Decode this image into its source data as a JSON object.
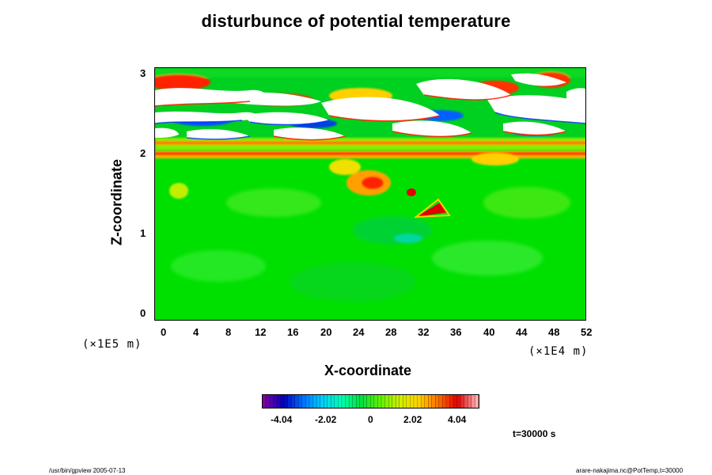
{
  "chart_data": {
    "type": "heatmap",
    "title": "disturbunce of potential temperature",
    "xlabel": "X-coordinate",
    "ylabel": "Z-coordinate",
    "x_unit": "(×1E4 m)",
    "y_unit": "(×1E5 m)",
    "xlim": [
      -0.6,
      52
    ],
    "ylim": [
      -0.1,
      3.1
    ],
    "x_ticks": [
      "0",
      "4",
      "8",
      "12",
      "16",
      "20",
      "24",
      "28",
      "32",
      "36",
      "40",
      "44",
      "48",
      "52"
    ],
    "y_ticks": [
      "0",
      "1",
      "2",
      "3"
    ],
    "colorbar": {
      "ticks": [
        "-4.04",
        "-2.02",
        "0",
        "2.02",
        "4.04"
      ],
      "colors": [
        "#8000a0",
        "#0000c0",
        "#0070ff",
        "#00d0ff",
        "#00ffb0",
        "#00e040",
        "#60f000",
        "#d0f000",
        "#ffd000",
        "#ff7000",
        "#e00000",
        "#ffb0b0"
      ]
    },
    "features": [
      {
        "description": "stratified layer with large values above z=2",
        "zmin": 2.0,
        "zmax": 3.1
      },
      {
        "description": "positive anomaly blob",
        "x": 29,
        "z": 1.35
      }
    ]
  },
  "annotations": {
    "time": "t=30000 s",
    "footer_left": "/usr/bin/gpview 2005-07-13",
    "footer_right": "arare-nakajima.nc@PotTemp,t=30000"
  }
}
